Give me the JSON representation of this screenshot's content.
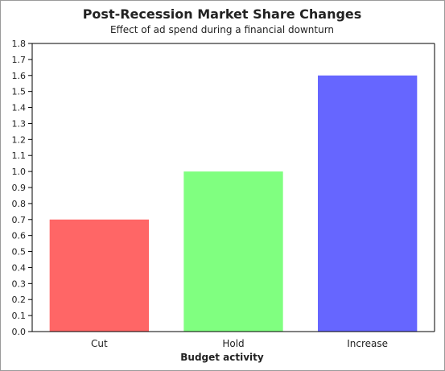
{
  "chart_data": {
    "type": "bar",
    "title": "Post-Recession Market Share Changes",
    "subtitle": "Effect of ad spend during a financial downturn",
    "xlabel": "Budget activity",
    "ylabel": "",
    "ylim": [
      0,
      1.8
    ],
    "yticks": [
      "0.0",
      "0.1",
      "0.2",
      "0.3",
      "0.4",
      "0.5",
      "0.6",
      "0.7",
      "0.8",
      "0.9",
      "1.0",
      "1.1",
      "1.2",
      "1.3",
      "1.4",
      "1.5",
      "1.6",
      "1.7",
      "1.8"
    ],
    "categories": [
      "Cut",
      "Hold",
      "Increase"
    ],
    "values": [
      0.7,
      1.0,
      1.6
    ],
    "colors": [
      "#ff6666",
      "#80ff80",
      "#6666ff"
    ],
    "grid": false,
    "legend": "none"
  }
}
